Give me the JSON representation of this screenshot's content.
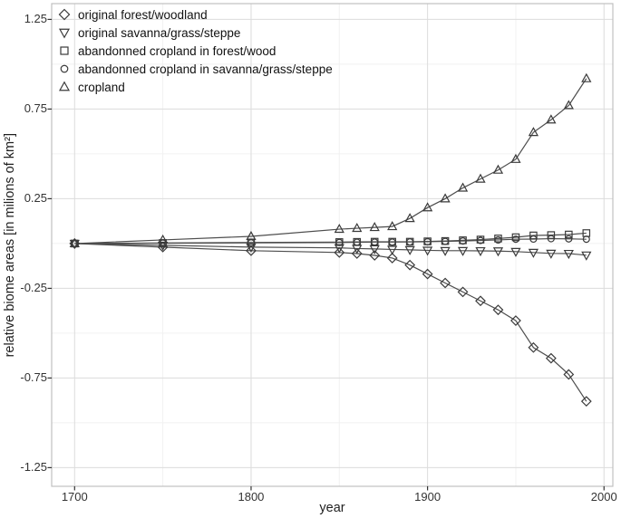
{
  "figure": {
    "xlabel": "year",
    "ylabel": "relative biome areas [in milions of km²]"
  },
  "chart_data": {
    "type": "line",
    "title": "",
    "xlabel": "year",
    "ylabel": "relative biome areas [in milions of km²]",
    "legend_position": "top-left-inside",
    "grid": true,
    "x": [
      1700,
      1750,
      1800,
      1850,
      1860,
      1870,
      1880,
      1890,
      1900,
      1910,
      1920,
      1930,
      1940,
      1950,
      1960,
      1970,
      1980,
      1990
    ],
    "series": [
      {
        "label": "original forest/woodland",
        "marker": "diamond",
        "values": [
          0,
          -0.02,
          -0.04,
          -0.05,
          -0.056,
          -0.066,
          -0.081,
          -0.12,
          -0.17,
          -0.22,
          -0.27,
          -0.32,
          -0.37,
          -0.43,
          -0.58,
          -0.64,
          -0.73,
          -0.88
        ]
      },
      {
        "label": "original savanna/grass/steppe",
        "marker": "triangle-down",
        "values": [
          0,
          -0.01,
          -0.02,
          -0.024,
          -0.028,
          -0.03,
          -0.033,
          -0.035,
          -0.038,
          -0.04,
          -0.04,
          -0.041,
          -0.042,
          -0.045,
          -0.05,
          -0.055,
          -0.056,
          -0.065
        ]
      },
      {
        "label": "abandonned cropland in forest/wood",
        "marker": "square",
        "values": [
          0,
          0.003,
          0.006,
          0.008,
          0.009,
          0.01,
          0.01,
          0.01,
          0.012,
          0.014,
          0.018,
          0.022,
          0.028,
          0.035,
          0.045,
          0.047,
          0.05,
          0.058
        ]
      },
      {
        "label": "abandonned cropland in savanna/grass/steppe",
        "marker": "circle",
        "values": [
          0,
          0.002,
          0.004,
          0.006,
          0.007,
          0.008,
          0.008,
          0.009,
          0.01,
          0.012,
          0.014,
          0.017,
          0.02,
          0.024,
          0.025,
          0.027,
          0.026,
          0.024
        ]
      },
      {
        "label": "cropland",
        "marker": "triangle-up",
        "values": [
          0,
          0.02,
          0.04,
          0.08,
          0.085,
          0.09,
          0.095,
          0.14,
          0.2,
          0.25,
          0.31,
          0.36,
          0.41,
          0.47,
          0.62,
          0.69,
          0.77,
          0.92
        ]
      }
    ],
    "xlim": [
      1687,
      2005
    ],
    "ylim": [
      -1.354,
      1.338
    ],
    "x_ticks": [
      1700,
      1800,
      1900,
      2000
    ],
    "x_tick_labels": [
      "1700",
      "1800",
      "1900",
      "2000"
    ],
    "x_minor_ticks": [
      1750,
      1850,
      1950
    ],
    "y_ticks": [
      1.25,
      0.75,
      0.25,
      -0.25,
      -0.75,
      -1.25
    ],
    "y_tick_labels": [
      "1.25",
      "0.75",
      "0.25",
      "-0.25",
      "-0.75",
      "-1.25"
    ],
    "y_minor_ticks": [
      1.0,
      0.5,
      0,
      -0.5,
      -1.0
    ],
    "colors": {
      "line": "#4d4d4d",
      "marker": "#3a3a3a",
      "grid_major": "#dcdcdc",
      "grid_minor": "#f1f1f1",
      "panel_border": "#c0c0c0",
      "tick": "#333333"
    }
  }
}
